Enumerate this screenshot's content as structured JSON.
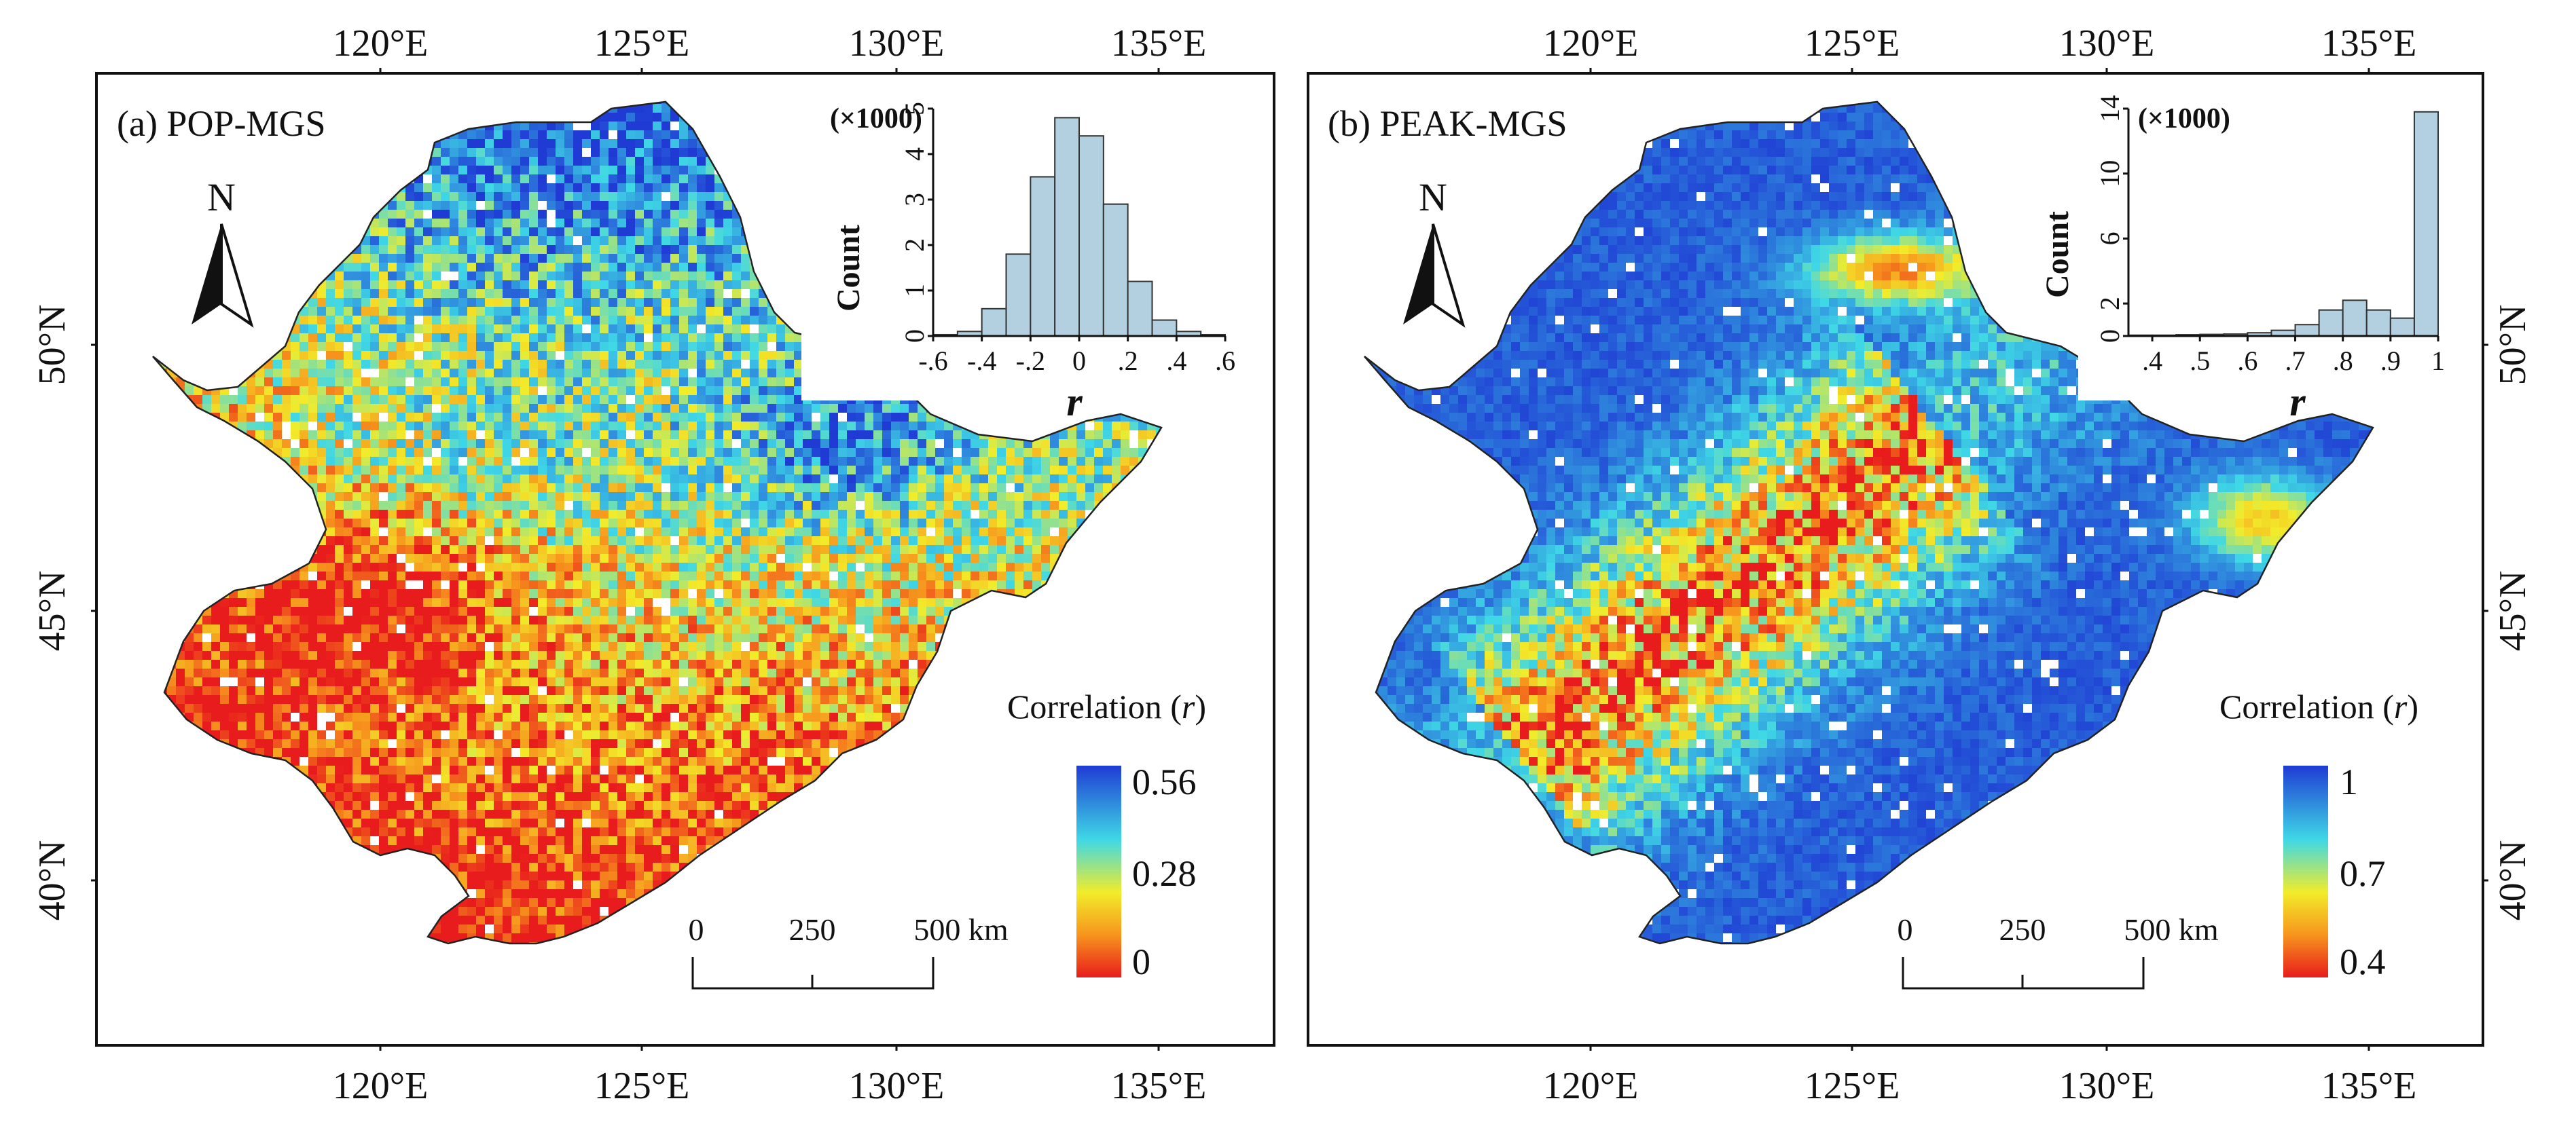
{
  "colors": {
    "blue": "#1f3bd4",
    "cyan": "#3fd8e6",
    "yellow": "#f2ec2a",
    "orange": "#f7941d",
    "red": "#e81c1c",
    "hist_bar": "#b3d0e0"
  },
  "axes": {
    "lon_labels": [
      "120°E",
      "125°E",
      "130°E",
      "135°E"
    ],
    "lat_labels": [
      "50°N",
      "45°N",
      "40°N"
    ]
  },
  "panels": [
    {
      "id": "a",
      "title": "(a) POP-MGS",
      "north": "N",
      "legend": {
        "title_text": "Correlation (",
        "title_var": "r",
        "title_close": ")",
        "labels": [
          "0.56",
          "0.28",
          "0"
        ]
      },
      "scale_bar": {
        "labels": [
          "0",
          "250",
          "500 km"
        ]
      },
      "histogram": {
        "multiplier": "(×1000)",
        "ylabel": "Count",
        "xlabel": "r",
        "yticks": [
          "0",
          "1",
          "2",
          "3",
          "4",
          "5"
        ],
        "xticks": [
          "-.6",
          "-.4",
          "-.2",
          "0",
          ".2",
          ".4",
          ".6"
        ],
        "bins": [
          -0.6,
          -0.5,
          -0.4,
          -0.3,
          -0.2,
          -0.1,
          0.0,
          0.1,
          0.2,
          0.3,
          0.4,
          0.5,
          0.6
        ],
        "counts": [
          0.03,
          0.1,
          0.6,
          1.8,
          3.5,
          4.8,
          4.4,
          2.9,
          1.2,
          0.35,
          0.1,
          0.03
        ],
        "ymax": 5
      }
    },
    {
      "id": "b",
      "title": "(b) PEAK-MGS",
      "north": "N",
      "legend": {
        "title_text": "Correlation (",
        "title_var": "r",
        "title_close": ")",
        "labels": [
          "1",
          "0.7",
          "0.4"
        ]
      },
      "scale_bar": {
        "labels": [
          "0",
          "250",
          "500 km"
        ]
      },
      "histogram": {
        "multiplier": "(×1000)",
        "ylabel": "Count",
        "xlabel": "r",
        "yticks": [
          "0",
          "2",
          "6",
          "10",
          "14"
        ],
        "xticks": [
          ".4",
          ".5",
          ".6",
          ".7",
          ".8",
          ".9",
          "1"
        ],
        "bins": [
          0.35,
          0.4,
          0.45,
          0.5,
          0.55,
          0.6,
          0.65,
          0.7,
          0.75,
          0.8,
          0.85,
          0.9,
          0.95,
          1.0
        ],
        "counts": [
          0.05,
          0.05,
          0.08,
          0.1,
          0.12,
          0.2,
          0.35,
          0.7,
          1.6,
          2.2,
          1.6,
          1.1,
          13.8
        ],
        "ymax": 14
      }
    }
  ]
}
